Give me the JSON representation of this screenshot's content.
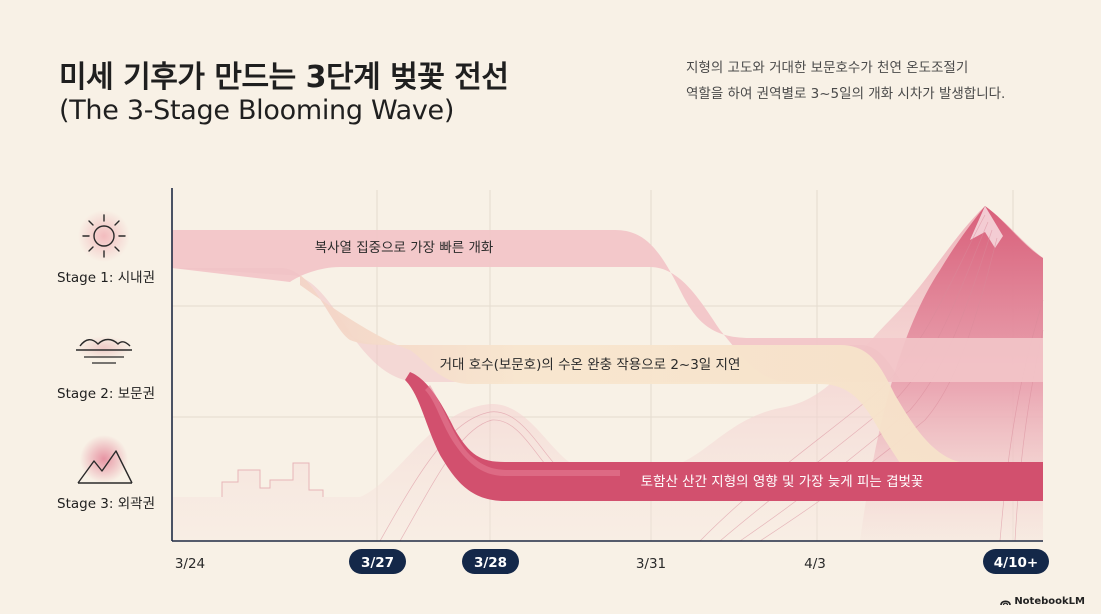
{
  "header": {
    "title": "미세 기후가 만드는 3단계 벚꽃 전선",
    "subtitle": "(The 3-Stage Blooming Wave)",
    "description_lines": [
      "지형의 고도와 거대한 보문호수가 천연 온도조절기",
      "역할을 하여 권역별로 3~5일의 개화 시차가 발생합니다."
    ]
  },
  "stages": [
    {
      "label": "Stage 1: 시내권",
      "icon": "sun-icon",
      "band_text": "복사열 집중으로 가장 빠른 개화"
    },
    {
      "label": "Stage 2: 보문권",
      "icon": "lake-icon",
      "band_text": "거대 호수(보문호)의 수온 완충 작용으로 2~3일 지연"
    },
    {
      "label": "Stage 3: 외곽권",
      "icon": "mountain-icon",
      "band_text": "토함산 산간 지형의 영향 및 가장 늦게 피는 겹벚꽃"
    }
  ],
  "timeline": [
    {
      "label": "3/24",
      "highlight": false
    },
    {
      "label": "3/27",
      "highlight": true
    },
    {
      "label": "3/28",
      "highlight": true
    },
    {
      "label": "3/31",
      "highlight": false
    },
    {
      "label": "4/3",
      "highlight": false
    },
    {
      "label": "4/10+",
      "highlight": true
    }
  ],
  "colors": {
    "background": "#f8f1e6",
    "stage1_band": "#f2c4c8",
    "stage2_band": "#f6e0c4",
    "stage3_band": "#d2506e",
    "highlight_pill": "#142849"
  },
  "brand": "NotebookLM"
}
